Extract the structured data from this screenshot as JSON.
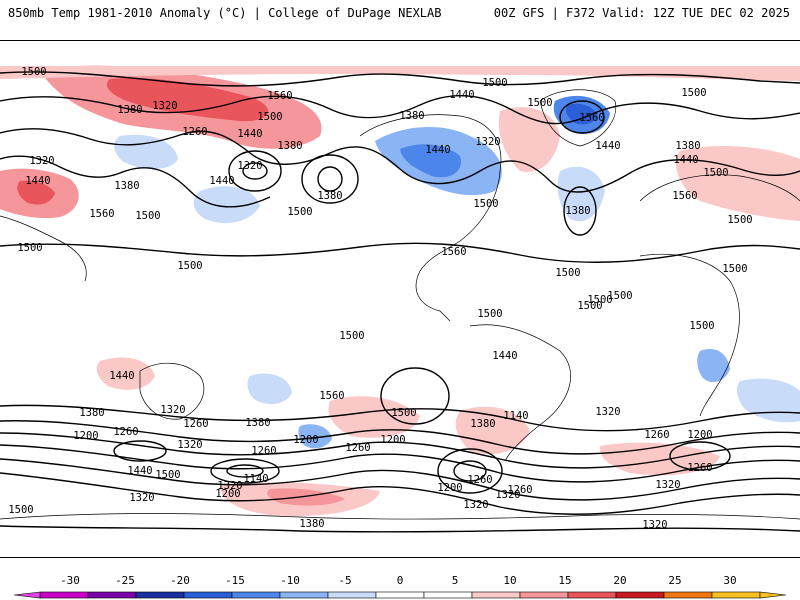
{
  "header": {
    "title": "850mb Temp 1981-2010 Anomaly (°C) | College of DuPage NEXLAB",
    "run_info": "00Z GFS | F372 Valid: 12Z TUE DEC 02 2025"
  },
  "map": {
    "field": "850mb Temp Anomaly",
    "contour_field": "Geopotential height (dam)",
    "contour_labels": [
      {
        "text": "1500",
        "region": "north pacific w"
      },
      {
        "text": "1380",
        "region": "east asia"
      },
      {
        "text": "1320",
        "region": "north pacific"
      },
      {
        "text": "1560",
        "region": "north pacific"
      },
      {
        "text": "1260",
        "region": "north pacific"
      },
      {
        "text": "1500",
        "region": "north pacific"
      },
      {
        "text": "1440",
        "region": "gulf of alaska"
      },
      {
        "text": "1380",
        "region": "gulf of alaska"
      },
      {
        "text": "1320",
        "region": "central pacific low"
      },
      {
        "text": "1380",
        "region": "central pacific low"
      },
      {
        "text": "1440",
        "region": "central pacific"
      },
      {
        "text": "1500",
        "region": "pacific"
      },
      {
        "text": "1500",
        "region": "tropical pacific"
      },
      {
        "text": "1320",
        "region": "asia"
      },
      {
        "text": "1440",
        "region": "asia"
      },
      {
        "text": "1380",
        "region": "asia"
      },
      {
        "text": "1560",
        "region": "asia"
      },
      {
        "text": "1500",
        "region": "asia"
      },
      {
        "text": "1500",
        "region": "maritime continent"
      },
      {
        "text": "1500",
        "region": "arctic"
      },
      {
        "text": "1440",
        "region": "arctic"
      },
      {
        "text": "1380",
        "region": "canada"
      },
      {
        "text": "1440",
        "region": "canada"
      },
      {
        "text": "1320",
        "region": "hudson bay"
      },
      {
        "text": "1500",
        "region": "usa"
      },
      {
        "text": "1560",
        "region": "gulf of mexico"
      },
      {
        "text": "1500",
        "region": "greenland"
      },
      {
        "text": "1560",
        "region": "greenland"
      },
      {
        "text": "1500",
        "region": "north atlantic"
      },
      {
        "text": "1440",
        "region": "north atlantic"
      },
      {
        "text": "1380",
        "region": "north atlantic"
      },
      {
        "text": "1500",
        "region": "atlantic"
      },
      {
        "text": "1380",
        "region": "europe"
      },
      {
        "text": "1440",
        "region": "europe"
      },
      {
        "text": "1500",
        "region": "europe"
      },
      {
        "text": "1560",
        "region": "north africa"
      },
      {
        "text": "1500",
        "region": "east atlantic"
      },
      {
        "text": "1500",
        "region": "africa"
      },
      {
        "text": "1500",
        "region": "south america"
      },
      {
        "text": "1500",
        "region": "brazil"
      },
      {
        "text": "1500",
        "region": "south atlantic"
      },
      {
        "text": "1500",
        "region": "east pacific"
      },
      {
        "text": "1500",
        "region": "indian ocean"
      },
      {
        "text": "1500",
        "region": "australia"
      },
      {
        "text": "1440",
        "region": "south pacific"
      },
      {
        "text": "1560",
        "region": "south pacific"
      },
      {
        "text": "1500",
        "region": "south indian ocean"
      },
      {
        "text": "1440",
        "region": "south indian ocean"
      },
      {
        "text": "1380",
        "region": "south indian ocean"
      },
      {
        "text": "1320",
        "region": "south indian ocean"
      },
      {
        "text": "1260",
        "region": "south indian ocean"
      },
      {
        "text": "1200",
        "region": "south indian ocean"
      },
      {
        "text": "1260",
        "region": "southern ocean"
      },
      {
        "text": "1500",
        "region": "south pacific w"
      },
      {
        "text": "1440",
        "region": "south pacific w"
      },
      {
        "text": "1380",
        "region": "south pacific w"
      },
      {
        "text": "1320",
        "region": "south pacific w"
      },
      {
        "text": "1200",
        "region": "south pacific w"
      },
      {
        "text": "1260",
        "region": "southern ocean w"
      },
      {
        "text": "1200",
        "region": "southern ocean w"
      },
      {
        "text": "1140",
        "region": "southern ocean w"
      },
      {
        "text": "1320",
        "region": "southern ocean w"
      },
      {
        "text": "1500",
        "region": "tasman sea"
      },
      {
        "text": "1320",
        "region": "tasman sea"
      },
      {
        "text": "1260",
        "region": "south pacific"
      },
      {
        "text": "1380",
        "region": "south pacific"
      },
      {
        "text": "1200",
        "region": "south pacific"
      },
      {
        "text": "1260",
        "region": "drake passage"
      },
      {
        "text": "1320",
        "region": "drake passage"
      },
      {
        "text": "1140",
        "region": "weddell sea"
      },
      {
        "text": "1200",
        "region": "weddell sea"
      },
      {
        "text": "1260",
        "region": "weddell sea"
      },
      {
        "text": "1320",
        "region": "antarctica"
      },
      {
        "text": "1380",
        "region": "south atlantic"
      },
      {
        "text": "1320",
        "region": "south atlantic"
      },
      {
        "text": "1260",
        "region": "south atlantic"
      },
      {
        "text": "1200",
        "region": "south atlantic"
      },
      {
        "text": "1260",
        "region": "south indian"
      },
      {
        "text": "1320",
        "region": "antarctica w"
      },
      {
        "text": "1320",
        "region": "west edge"
      }
    ]
  },
  "colorbar": {
    "ticks": [
      "-30",
      "-25",
      "-20",
      "-15",
      "-10",
      "-5",
      "0",
      "5",
      "10",
      "15",
      "20",
      "25",
      "30"
    ],
    "colors": [
      "#c800c8",
      "#7a00a8",
      "#1a2fa0",
      "#2a5fd8",
      "#4d86ea",
      "#8ab4f4",
      "#c8dcfa",
      "#ffffff",
      "#ffffff",
      "#fbc8c8",
      "#f4969a",
      "#e8555a",
      "#c81a20",
      "#f07810",
      "#f8c020"
    ]
  }
}
